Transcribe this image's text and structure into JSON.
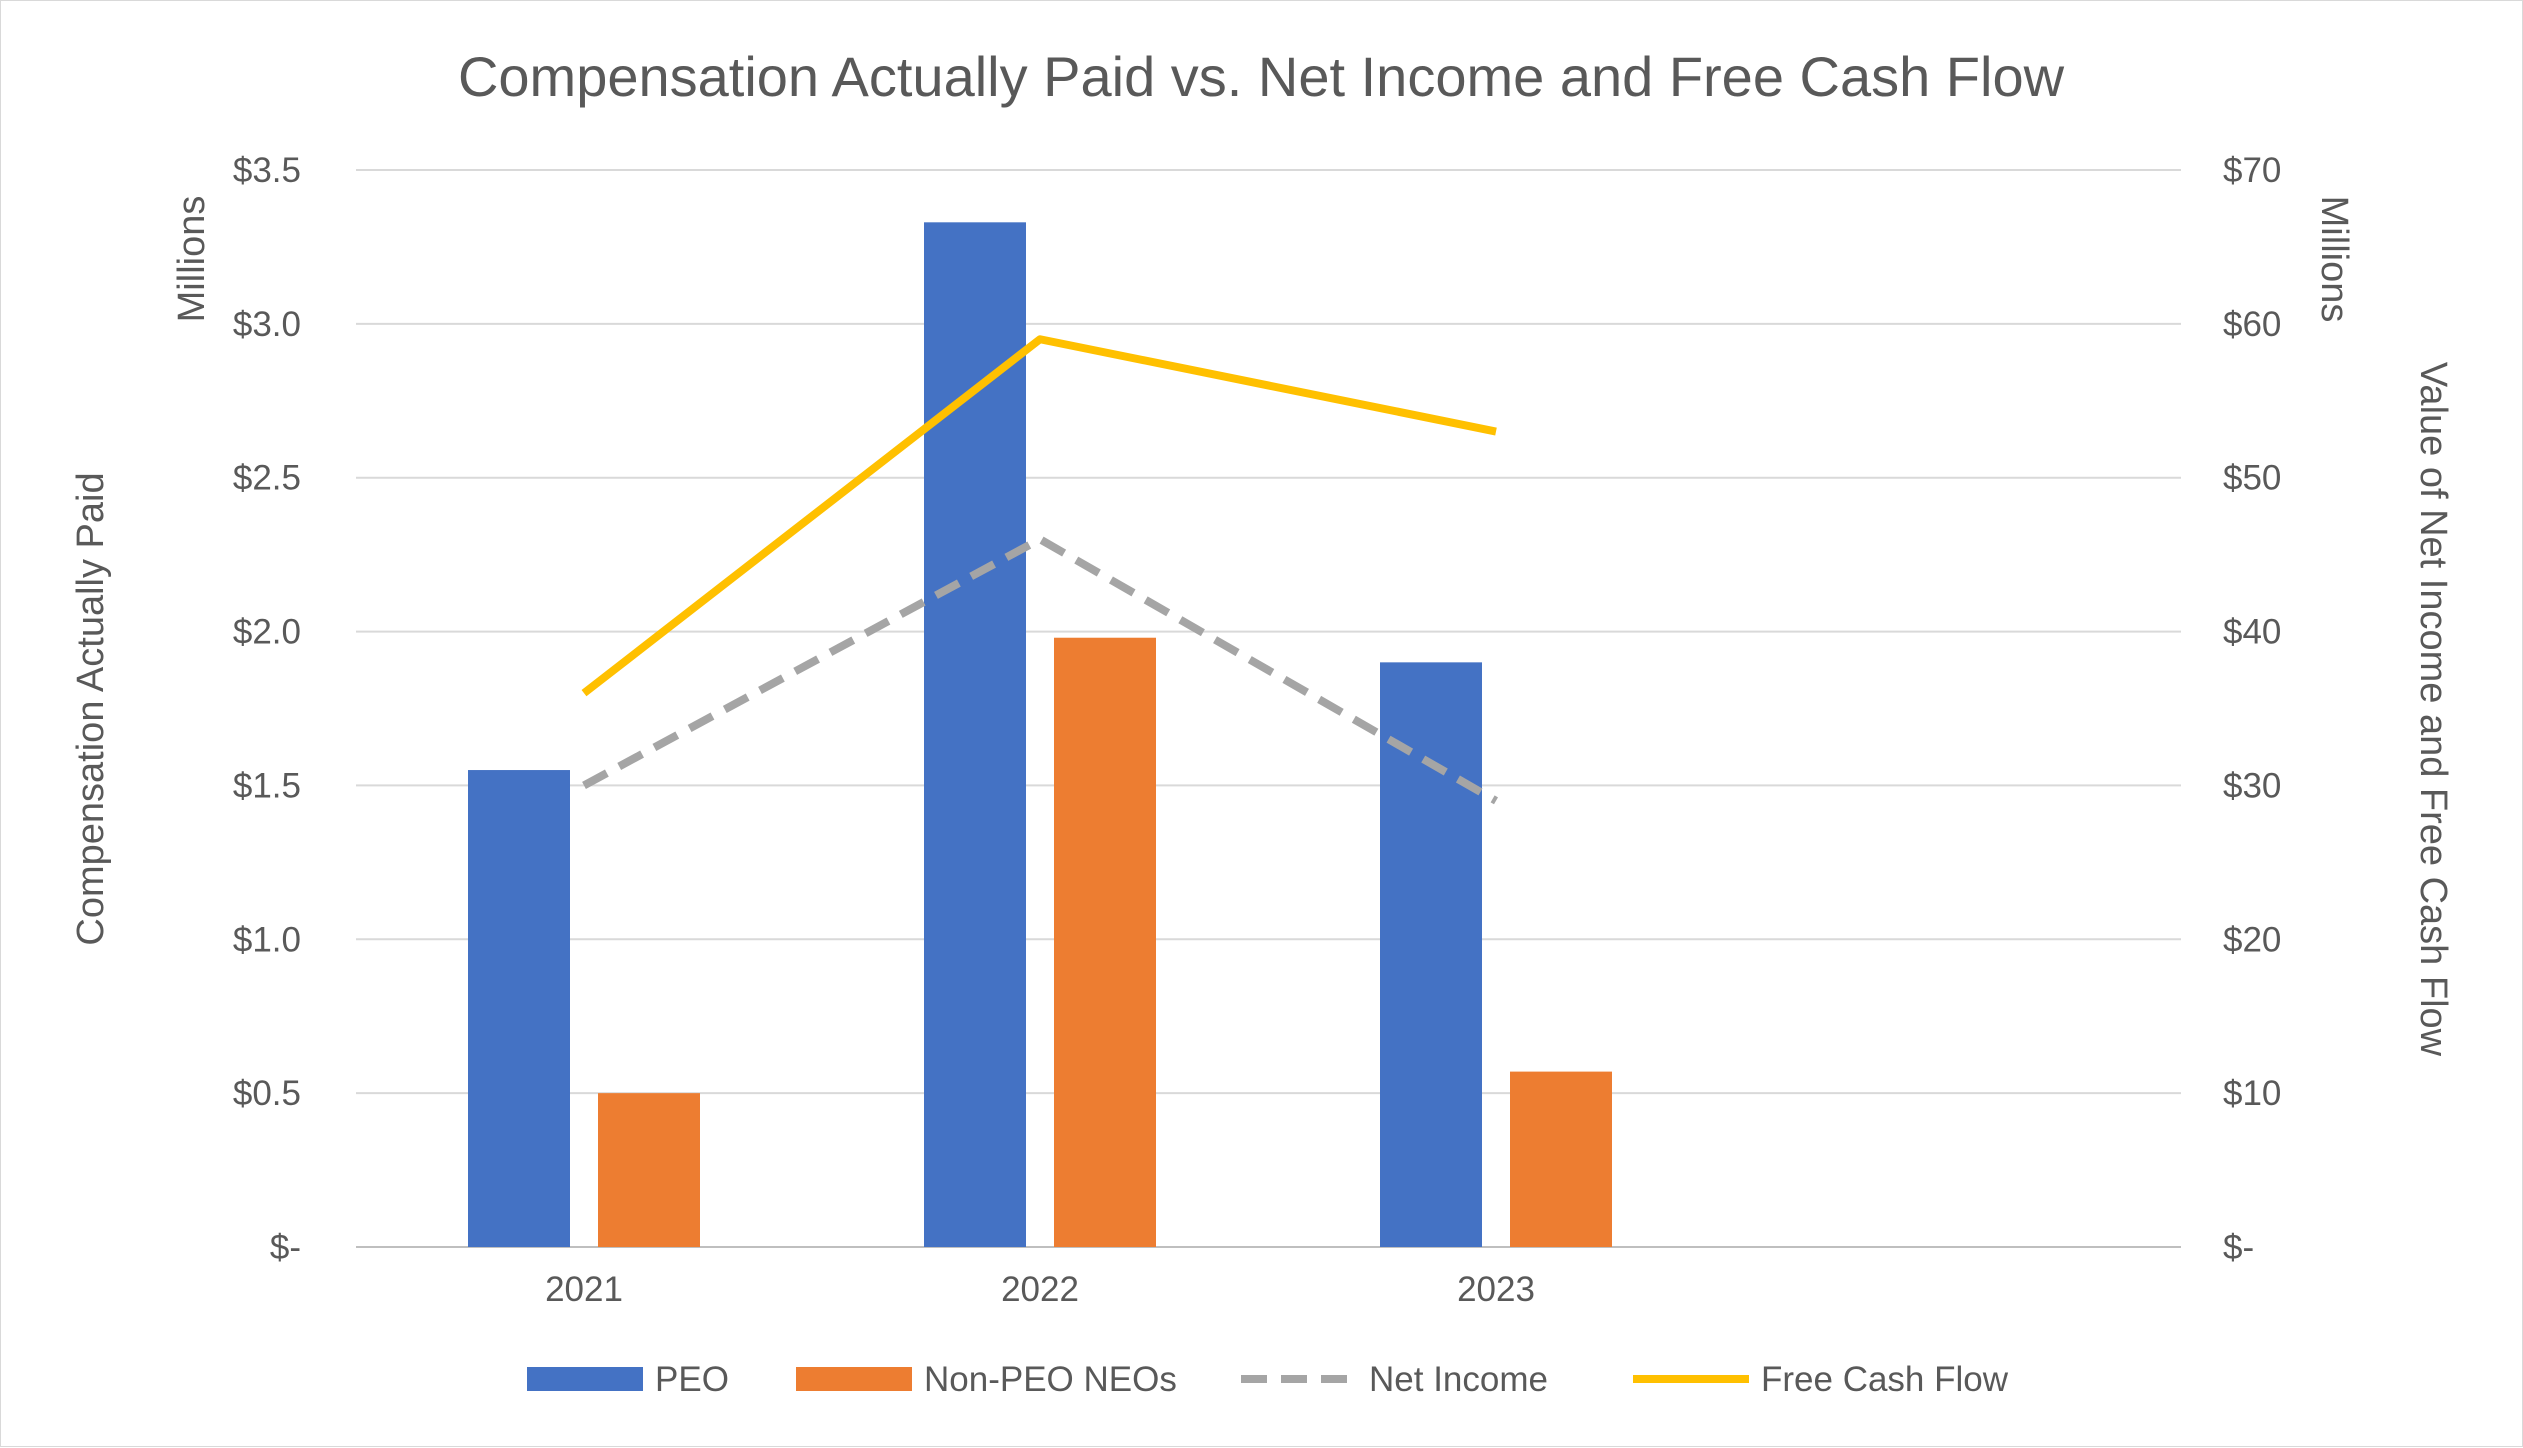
{
  "chart_data": {
    "type": "bar",
    "title": "Compensation Actually Paid vs. Net Income and Free Cash Flow",
    "categories": [
      "2021",
      "2022",
      "2023"
    ],
    "left_axis": {
      "label": "Compensation Actually Paid",
      "units_label": "Millions",
      "ylim": [
        0,
        3.5
      ],
      "ticks": [
        {
          "value": 0,
          "label": "$-"
        },
        {
          "value": 0.5,
          "label": "$0.5"
        },
        {
          "value": 1.0,
          "label": "$1.0"
        },
        {
          "value": 1.5,
          "label": "$1.5"
        },
        {
          "value": 2.0,
          "label": "$2.0"
        },
        {
          "value": 2.5,
          "label": "$2.5"
        },
        {
          "value": 3.0,
          "label": "$3.0"
        },
        {
          "value": 3.5,
          "label": "$3.5"
        }
      ]
    },
    "right_axis": {
      "label": "Value of Net Income and Free Cash Flow",
      "units_label": "Millions",
      "ylim": [
        0,
        70
      ],
      "ticks": [
        {
          "value": 0,
          "label": "$-"
        },
        {
          "value": 10,
          "label": "$10"
        },
        {
          "value": 20,
          "label": "$20"
        },
        {
          "value": 30,
          "label": "$30"
        },
        {
          "value": 40,
          "label": "$40"
        },
        {
          "value": 50,
          "label": "$50"
        },
        {
          "value": 60,
          "label": "$60"
        },
        {
          "value": 70,
          "label": "$70"
        }
      ]
    },
    "series": [
      {
        "name": "PEO",
        "type": "bar",
        "axis": "left",
        "color": "#4472C4",
        "values": [
          1.55,
          3.33,
          1.9
        ]
      },
      {
        "name": "Non-PEO NEOs",
        "type": "bar",
        "axis": "left",
        "color": "#ED7D31",
        "values": [
          0.5,
          1.98,
          0.57
        ]
      },
      {
        "name": "Net Income",
        "type": "line",
        "style": "dashed",
        "axis": "right",
        "color": "#A5A5A5",
        "values": [
          30.0,
          46.0,
          29.0
        ]
      },
      {
        "name": "Free Cash Flow",
        "type": "line",
        "style": "solid",
        "axis": "right",
        "color": "#FFC000",
        "values": [
          36.0,
          59.0,
          53.0
        ]
      }
    ],
    "grid": true,
    "legend_position": "bottom"
  }
}
